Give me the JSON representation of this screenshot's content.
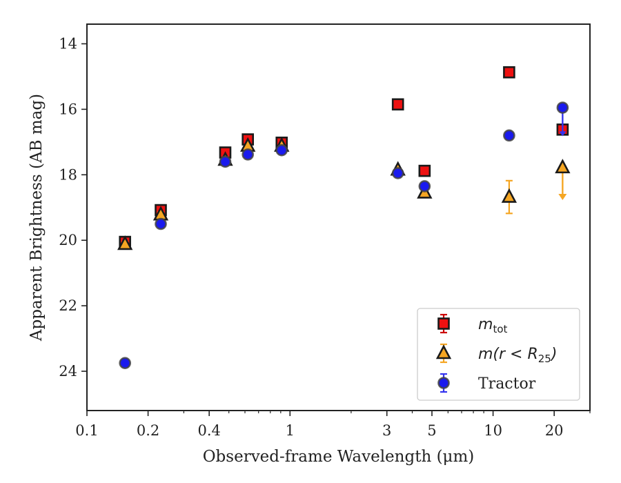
{
  "chart_data": {
    "type": "scatter",
    "xlabel": "Observed-frame Wavelength (μm)",
    "ylabel": "Apparent Brightness (AB mag)",
    "xscale": "log",
    "xlim": [
      0.1,
      30
    ],
    "ylim": [
      25.2,
      13.4
    ],
    "y_inverted": true,
    "grid": false,
    "legend_position": "lower right",
    "x_ticks": [
      {
        "value": 0.1,
        "label": "0.1"
      },
      {
        "value": 0.2,
        "label": "0.2"
      },
      {
        "value": 0.4,
        "label": "0.4"
      },
      {
        "value": 1,
        "label": "1"
      },
      {
        "value": 3,
        "label": "3"
      },
      {
        "value": 5,
        "label": "5"
      },
      {
        "value": 10,
        "label": "10"
      },
      {
        "value": 20,
        "label": "20"
      }
    ],
    "y_ticks": [
      {
        "value": 14,
        "label": "14"
      },
      {
        "value": 16,
        "label": "16"
      },
      {
        "value": 18,
        "label": "18"
      },
      {
        "value": 20,
        "label": "20"
      },
      {
        "value": 22,
        "label": "22"
      },
      {
        "value": 24,
        "label": "24"
      }
    ],
    "series": [
      {
        "name": "m_tot",
        "marker": "square",
        "color": "#ee1111",
        "error_color": "#cc0000",
        "points": [
          {
            "x": 0.154,
            "y": 20.05,
            "err": 0.08
          },
          {
            "x": 0.231,
            "y": 19.08,
            "err": 0.08
          },
          {
            "x": 0.48,
            "y": 17.32,
            "err": 0.05
          },
          {
            "x": 0.62,
            "y": 16.92,
            "err": 0.05
          },
          {
            "x": 0.91,
            "y": 17.02,
            "err": 0.05
          },
          {
            "x": 3.4,
            "y": 15.85,
            "err": 0.05
          },
          {
            "x": 4.6,
            "y": 17.88,
            "err": 0.05
          },
          {
            "x": 12.0,
            "y": 14.87,
            "err": 0.05
          },
          {
            "x": 22.0,
            "y": 16.62,
            "err": 0.05
          }
        ]
      },
      {
        "name": "m(r < R25)",
        "marker": "triangle",
        "color": "#f5a623",
        "error_color": "#f5a623",
        "points": [
          {
            "x": 0.154,
            "y": 20.12,
            "err": 0.08
          },
          {
            "x": 0.231,
            "y": 19.22,
            "err": 0.08
          },
          {
            "x": 0.48,
            "y": 17.55,
            "err": 0.05
          },
          {
            "x": 0.62,
            "y": 17.12,
            "err": 0.05
          },
          {
            "x": 0.91,
            "y": 17.12,
            "err": 0.05
          },
          {
            "x": 3.4,
            "y": 17.85,
            "err": 0.05
          },
          {
            "x": 4.6,
            "y": 18.55,
            "err": 0.05
          },
          {
            "x": 12.0,
            "y": 18.68,
            "err": 0.5
          },
          {
            "x": 22.0,
            "y": 17.78,
            "err": 0,
            "upper_limit": true
          }
        ]
      },
      {
        "name": "Tractor",
        "marker": "circle",
        "color": "#1a1aee",
        "error_color": "#3333ee",
        "points": [
          {
            "x": 0.154,
            "y": 23.75,
            "err": 0.05
          },
          {
            "x": 0.231,
            "y": 19.5,
            "err": 0.05
          },
          {
            "x": 0.48,
            "y": 17.6,
            "err": 0.05
          },
          {
            "x": 0.62,
            "y": 17.38,
            "err": 0.05
          },
          {
            "x": 0.91,
            "y": 17.25,
            "err": 0.05
          },
          {
            "x": 3.4,
            "y": 17.95,
            "err": 0.05
          },
          {
            "x": 4.6,
            "y": 18.35,
            "err": 0.05
          },
          {
            "x": 12.0,
            "y": 16.8,
            "err": 0.05
          },
          {
            "x": 22.0,
            "y": 15.95,
            "err": 0.05,
            "lower_limit": true
          }
        ]
      }
    ],
    "legend": [
      {
        "marker": "square",
        "color": "#ee1111",
        "error_color": "#cc0000",
        "math": "m",
        "sub": "tot",
        "suffix": ""
      },
      {
        "marker": "triangle",
        "color": "#f5a623",
        "error_color": "#f5a623",
        "math": "m(r < R",
        "sub": "25",
        "suffix": ")"
      },
      {
        "marker": "circle",
        "color": "#1a1aee",
        "error_color": "#3333ee",
        "math": "",
        "sub": "",
        "suffix": "",
        "text": "Tractor"
      }
    ]
  }
}
